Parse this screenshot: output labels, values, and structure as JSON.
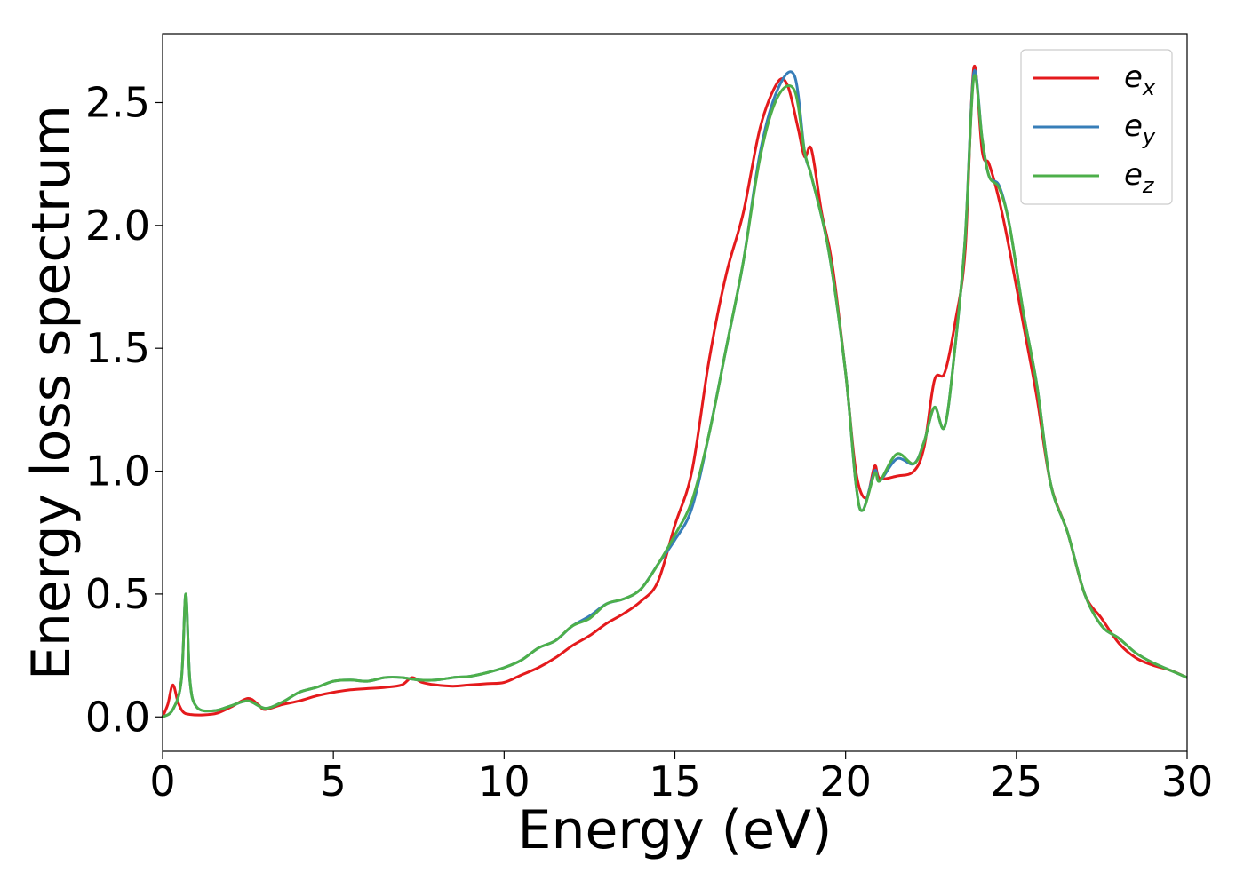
{
  "chart_data": {
    "type": "line",
    "title": "",
    "xlabel": "Energy (eV)",
    "ylabel": "Energy loss spectrum",
    "xlim": [
      0,
      30
    ],
    "ylim": [
      -0.14,
      2.78
    ],
    "xticks": [
      0,
      5,
      10,
      15,
      20,
      25,
      30
    ],
    "xtick_labels": [
      "0",
      "5",
      "10",
      "15",
      "20",
      "25",
      "30"
    ],
    "yticks": [
      0.0,
      0.5,
      1.0,
      1.5,
      2.0,
      2.5
    ],
    "ytick_labels": [
      "0.0",
      "0.5",
      "1.0",
      "1.5",
      "2.0",
      "2.5"
    ],
    "grid": false,
    "legend_position": "top-right",
    "series": [
      {
        "name": "e_x",
        "label_base": "e",
        "label_sub": "x",
        "color": "#e41a1c",
        "points": [
          [
            0,
            0.0
          ],
          [
            0.15,
            0.05
          ],
          [
            0.3,
            0.13
          ],
          [
            0.45,
            0.06
          ],
          [
            0.6,
            0.02
          ],
          [
            0.8,
            0.01
          ],
          [
            1.2,
            0.008
          ],
          [
            1.6,
            0.015
          ],
          [
            2.0,
            0.04
          ],
          [
            2.5,
            0.075
          ],
          [
            2.8,
            0.05
          ],
          [
            3.0,
            0.03
          ],
          [
            3.5,
            0.05
          ],
          [
            4.0,
            0.065
          ],
          [
            4.5,
            0.085
          ],
          [
            5.0,
            0.1
          ],
          [
            5.5,
            0.11
          ],
          [
            6.0,
            0.115
          ],
          [
            6.5,
            0.12
          ],
          [
            7.0,
            0.13
          ],
          [
            7.3,
            0.16
          ],
          [
            7.6,
            0.14
          ],
          [
            8.0,
            0.13
          ],
          [
            8.5,
            0.125
          ],
          [
            9.0,
            0.13
          ],
          [
            9.5,
            0.135
          ],
          [
            10.0,
            0.14
          ],
          [
            10.5,
            0.17
          ],
          [
            11.0,
            0.2
          ],
          [
            11.5,
            0.24
          ],
          [
            12.0,
            0.29
          ],
          [
            12.5,
            0.33
          ],
          [
            13.0,
            0.38
          ],
          [
            13.5,
            0.42
          ],
          [
            14.0,
            0.47
          ],
          [
            14.5,
            0.55
          ],
          [
            15.0,
            0.78
          ],
          [
            15.5,
            1.0
          ],
          [
            16.0,
            1.45
          ],
          [
            16.5,
            1.8
          ],
          [
            17.0,
            2.05
          ],
          [
            17.5,
            2.4
          ],
          [
            18.0,
            2.58
          ],
          [
            18.3,
            2.57
          ],
          [
            18.6,
            2.4
          ],
          [
            18.8,
            2.28
          ],
          [
            19.0,
            2.31
          ],
          [
            19.3,
            2.05
          ],
          [
            19.6,
            1.85
          ],
          [
            20.0,
            1.4
          ],
          [
            20.3,
            1.0
          ],
          [
            20.6,
            0.89
          ],
          [
            20.85,
            1.02
          ],
          [
            21.0,
            0.97
          ],
          [
            21.5,
            0.98
          ],
          [
            22.0,
            1.0
          ],
          [
            22.3,
            1.1
          ],
          [
            22.6,
            1.37
          ],
          [
            22.9,
            1.4
          ],
          [
            23.2,
            1.6
          ],
          [
            23.5,
            1.9
          ],
          [
            23.75,
            2.64
          ],
          [
            24.0,
            2.3
          ],
          [
            24.2,
            2.25
          ],
          [
            24.5,
            2.1
          ],
          [
            24.8,
            1.9
          ],
          [
            25.2,
            1.6
          ],
          [
            25.6,
            1.3
          ],
          [
            26.0,
            0.95
          ],
          [
            26.5,
            0.75
          ],
          [
            27.0,
            0.5
          ],
          [
            27.5,
            0.4
          ],
          [
            28.0,
            0.3
          ],
          [
            28.5,
            0.24
          ],
          [
            29.0,
            0.21
          ],
          [
            29.5,
            0.19
          ],
          [
            30.0,
            0.16
          ]
        ]
      },
      {
        "name": "e_y",
        "label_base": "e",
        "label_sub": "y",
        "color": "#377eb8",
        "points": [
          [
            0,
            0.0
          ],
          [
            0.3,
            0.03
          ],
          [
            0.55,
            0.15
          ],
          [
            0.68,
            0.5
          ],
          [
            0.8,
            0.15
          ],
          [
            1.0,
            0.04
          ],
          [
            1.5,
            0.025
          ],
          [
            2.0,
            0.045
          ],
          [
            2.5,
            0.065
          ],
          [
            3.0,
            0.035
          ],
          [
            3.5,
            0.06
          ],
          [
            4.0,
            0.1
          ],
          [
            4.5,
            0.12
          ],
          [
            5.0,
            0.145
          ],
          [
            5.5,
            0.15
          ],
          [
            6.0,
            0.145
          ],
          [
            6.5,
            0.16
          ],
          [
            7.0,
            0.16
          ],
          [
            7.5,
            0.15
          ],
          [
            8.0,
            0.15
          ],
          [
            8.5,
            0.16
          ],
          [
            9.0,
            0.165
          ],
          [
            9.5,
            0.18
          ],
          [
            10.0,
            0.2
          ],
          [
            10.5,
            0.23
          ],
          [
            11.0,
            0.28
          ],
          [
            11.5,
            0.31
          ],
          [
            12.0,
            0.37
          ],
          [
            12.5,
            0.41
          ],
          [
            13.0,
            0.46
          ],
          [
            13.5,
            0.48
          ],
          [
            14.0,
            0.52
          ],
          [
            14.5,
            0.62
          ],
          [
            15.0,
            0.72
          ],
          [
            15.5,
            0.85
          ],
          [
            16.0,
            1.15
          ],
          [
            16.5,
            1.5
          ],
          [
            17.0,
            1.85
          ],
          [
            17.5,
            2.3
          ],
          [
            18.0,
            2.55
          ],
          [
            18.5,
            2.61
          ],
          [
            18.8,
            2.3
          ],
          [
            19.0,
            2.2
          ],
          [
            19.5,
            1.9
          ],
          [
            20.0,
            1.4
          ],
          [
            20.3,
            0.95
          ],
          [
            20.5,
            0.84
          ],
          [
            20.85,
            1.0
          ],
          [
            21.0,
            0.96
          ],
          [
            21.5,
            1.05
          ],
          [
            22.0,
            1.03
          ],
          [
            22.3,
            1.12
          ],
          [
            22.6,
            1.26
          ],
          [
            22.9,
            1.18
          ],
          [
            23.2,
            1.5
          ],
          [
            23.5,
            1.95
          ],
          [
            23.75,
            2.62
          ],
          [
            24.0,
            2.35
          ],
          [
            24.2,
            2.2
          ],
          [
            24.5,
            2.16
          ],
          [
            24.8,
            2.0
          ],
          [
            25.2,
            1.65
          ],
          [
            25.6,
            1.35
          ],
          [
            26.0,
            0.95
          ],
          [
            26.5,
            0.75
          ],
          [
            27.0,
            0.5
          ],
          [
            27.5,
            0.37
          ],
          [
            28.0,
            0.32
          ],
          [
            28.5,
            0.26
          ],
          [
            29.0,
            0.22
          ],
          [
            29.5,
            0.19
          ],
          [
            30.0,
            0.16
          ]
        ]
      },
      {
        "name": "e_z",
        "label_base": "e",
        "label_sub": "z",
        "color": "#4daf4a",
        "points": [
          [
            0,
            0.0
          ],
          [
            0.3,
            0.03
          ],
          [
            0.55,
            0.15
          ],
          [
            0.68,
            0.5
          ],
          [
            0.8,
            0.15
          ],
          [
            1.0,
            0.04
          ],
          [
            1.5,
            0.025
          ],
          [
            2.0,
            0.045
          ],
          [
            2.5,
            0.065
          ],
          [
            3.0,
            0.035
          ],
          [
            3.5,
            0.06
          ],
          [
            4.0,
            0.1
          ],
          [
            4.5,
            0.12
          ],
          [
            5.0,
            0.145
          ],
          [
            5.5,
            0.15
          ],
          [
            6.0,
            0.145
          ],
          [
            6.5,
            0.16
          ],
          [
            7.0,
            0.16
          ],
          [
            7.5,
            0.15
          ],
          [
            8.0,
            0.15
          ],
          [
            8.5,
            0.16
          ],
          [
            9.0,
            0.165
          ],
          [
            9.5,
            0.18
          ],
          [
            10.0,
            0.2
          ],
          [
            10.5,
            0.23
          ],
          [
            11.0,
            0.28
          ],
          [
            11.5,
            0.31
          ],
          [
            12.0,
            0.37
          ],
          [
            12.5,
            0.4
          ],
          [
            13.0,
            0.46
          ],
          [
            13.5,
            0.48
          ],
          [
            14.0,
            0.52
          ],
          [
            14.5,
            0.62
          ],
          [
            15.0,
            0.74
          ],
          [
            15.5,
            0.88
          ],
          [
            16.0,
            1.15
          ],
          [
            16.5,
            1.5
          ],
          [
            17.0,
            1.85
          ],
          [
            17.5,
            2.28
          ],
          [
            18.0,
            2.52
          ],
          [
            18.5,
            2.55
          ],
          [
            18.8,
            2.3
          ],
          [
            19.0,
            2.2
          ],
          [
            19.5,
            1.9
          ],
          [
            20.0,
            1.4
          ],
          [
            20.3,
            0.95
          ],
          [
            20.5,
            0.84
          ],
          [
            20.85,
            0.99
          ],
          [
            21.0,
            0.96
          ],
          [
            21.5,
            1.07
          ],
          [
            22.0,
            1.03
          ],
          [
            22.3,
            1.12
          ],
          [
            22.6,
            1.26
          ],
          [
            22.9,
            1.18
          ],
          [
            23.2,
            1.5
          ],
          [
            23.5,
            1.95
          ],
          [
            23.75,
            2.6
          ],
          [
            24.0,
            2.35
          ],
          [
            24.2,
            2.2
          ],
          [
            24.5,
            2.15
          ],
          [
            24.8,
            2.0
          ],
          [
            25.2,
            1.65
          ],
          [
            25.6,
            1.35
          ],
          [
            26.0,
            0.95
          ],
          [
            26.5,
            0.75
          ],
          [
            27.0,
            0.5
          ],
          [
            27.5,
            0.37
          ],
          [
            28.0,
            0.32
          ],
          [
            28.5,
            0.26
          ],
          [
            29.0,
            0.22
          ],
          [
            29.5,
            0.19
          ],
          [
            30.0,
            0.16
          ]
        ]
      }
    ]
  }
}
